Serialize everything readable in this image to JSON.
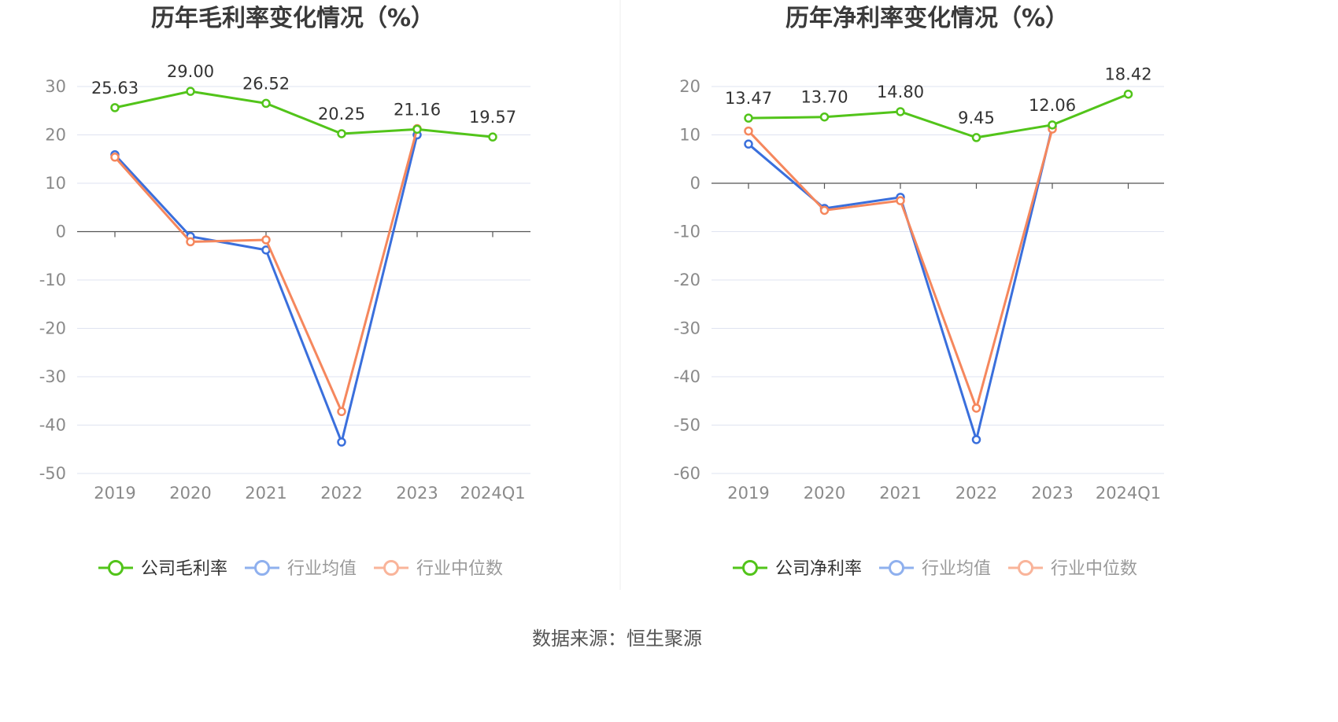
{
  "source_text": "数据来源：恒生聚源",
  "colors": {
    "company": "#52c41a",
    "industry_avg": "#3a6fdc",
    "industry_median": "#f5875d",
    "legend_avg_faded": "#8fb0ee",
    "legend_median_faded": "#f9b49a",
    "grid": "#dfe3f0",
    "axis": "#555555",
    "divider": "#ececec"
  },
  "chart_data": [
    {
      "type": "line",
      "title": "历年毛利率变化情况（%）",
      "categories": [
        "2019",
        "2020",
        "2021",
        "2022",
        "2023",
        "2024Q1"
      ],
      "ylim": [
        -50,
        30
      ],
      "yticks": [
        30,
        20,
        10,
        0,
        -10,
        -20,
        -30,
        -40,
        -50
      ],
      "grid": true,
      "legend_position": "bottom",
      "series": [
        {
          "name": "公司毛利率",
          "key": "company",
          "values": [
            25.63,
            29.0,
            26.52,
            20.25,
            21.16,
            19.57
          ],
          "labels": [
            "25.63",
            "29.00",
            "26.52",
            "20.25",
            "21.16",
            "19.57"
          ]
        },
        {
          "name": "行业均值",
          "key": "industry_avg",
          "values": [
            15.9,
            -1.0,
            -3.8,
            -43.5,
            20.0,
            null
          ]
        },
        {
          "name": "行业中位数",
          "key": "industry_median",
          "values": [
            15.4,
            -2.1,
            -1.7,
            -37.2,
            21.3,
            null
          ]
        }
      ]
    },
    {
      "type": "line",
      "title": "历年净利率变化情况（%）",
      "categories": [
        "2019",
        "2020",
        "2021",
        "2022",
        "2023",
        "2024Q1"
      ],
      "ylim": [
        -60,
        20
      ],
      "yticks": [
        20,
        10,
        0,
        -10,
        -20,
        -30,
        -40,
        -50,
        -60
      ],
      "grid": true,
      "legend_position": "bottom",
      "series": [
        {
          "name": "公司净利率",
          "key": "company",
          "values": [
            13.47,
            13.7,
            14.8,
            9.45,
            12.06,
            18.42
          ],
          "labels": [
            "13.47",
            "13.70",
            "14.80",
            "9.45",
            "12.06",
            "18.42"
          ]
        },
        {
          "name": "行业均值",
          "key": "industry_avg",
          "values": [
            8.1,
            -5.2,
            -2.9,
            -53.0,
            11.7,
            null
          ]
        },
        {
          "name": "行业中位数",
          "key": "industry_median",
          "values": [
            10.8,
            -5.6,
            -3.6,
            -46.5,
            11.2,
            null
          ]
        }
      ]
    }
  ]
}
